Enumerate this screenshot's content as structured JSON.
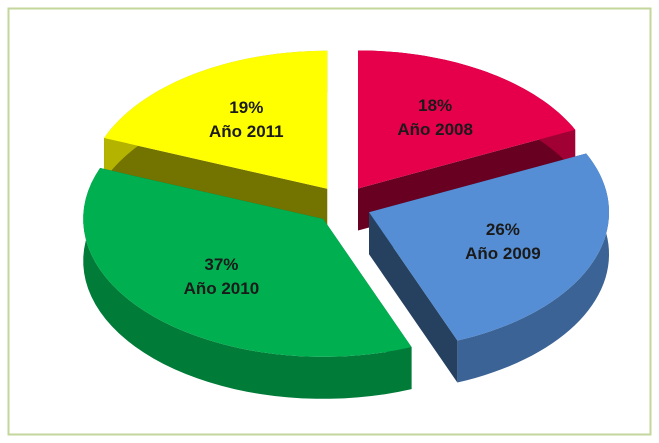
{
  "chart_data": {
    "type": "pie",
    "categories": [
      "Año 2008",
      "Año 2009",
      "Año 2010",
      "Año 2011"
    ],
    "values": [
      18,
      26,
      37,
      19
    ],
    "value_labels": [
      "18%",
      "26%",
      "37%",
      "19%"
    ],
    "colors": [
      "#e6004c",
      "#558ed5",
      "#00b050",
      "#ffff00"
    ]
  }
}
